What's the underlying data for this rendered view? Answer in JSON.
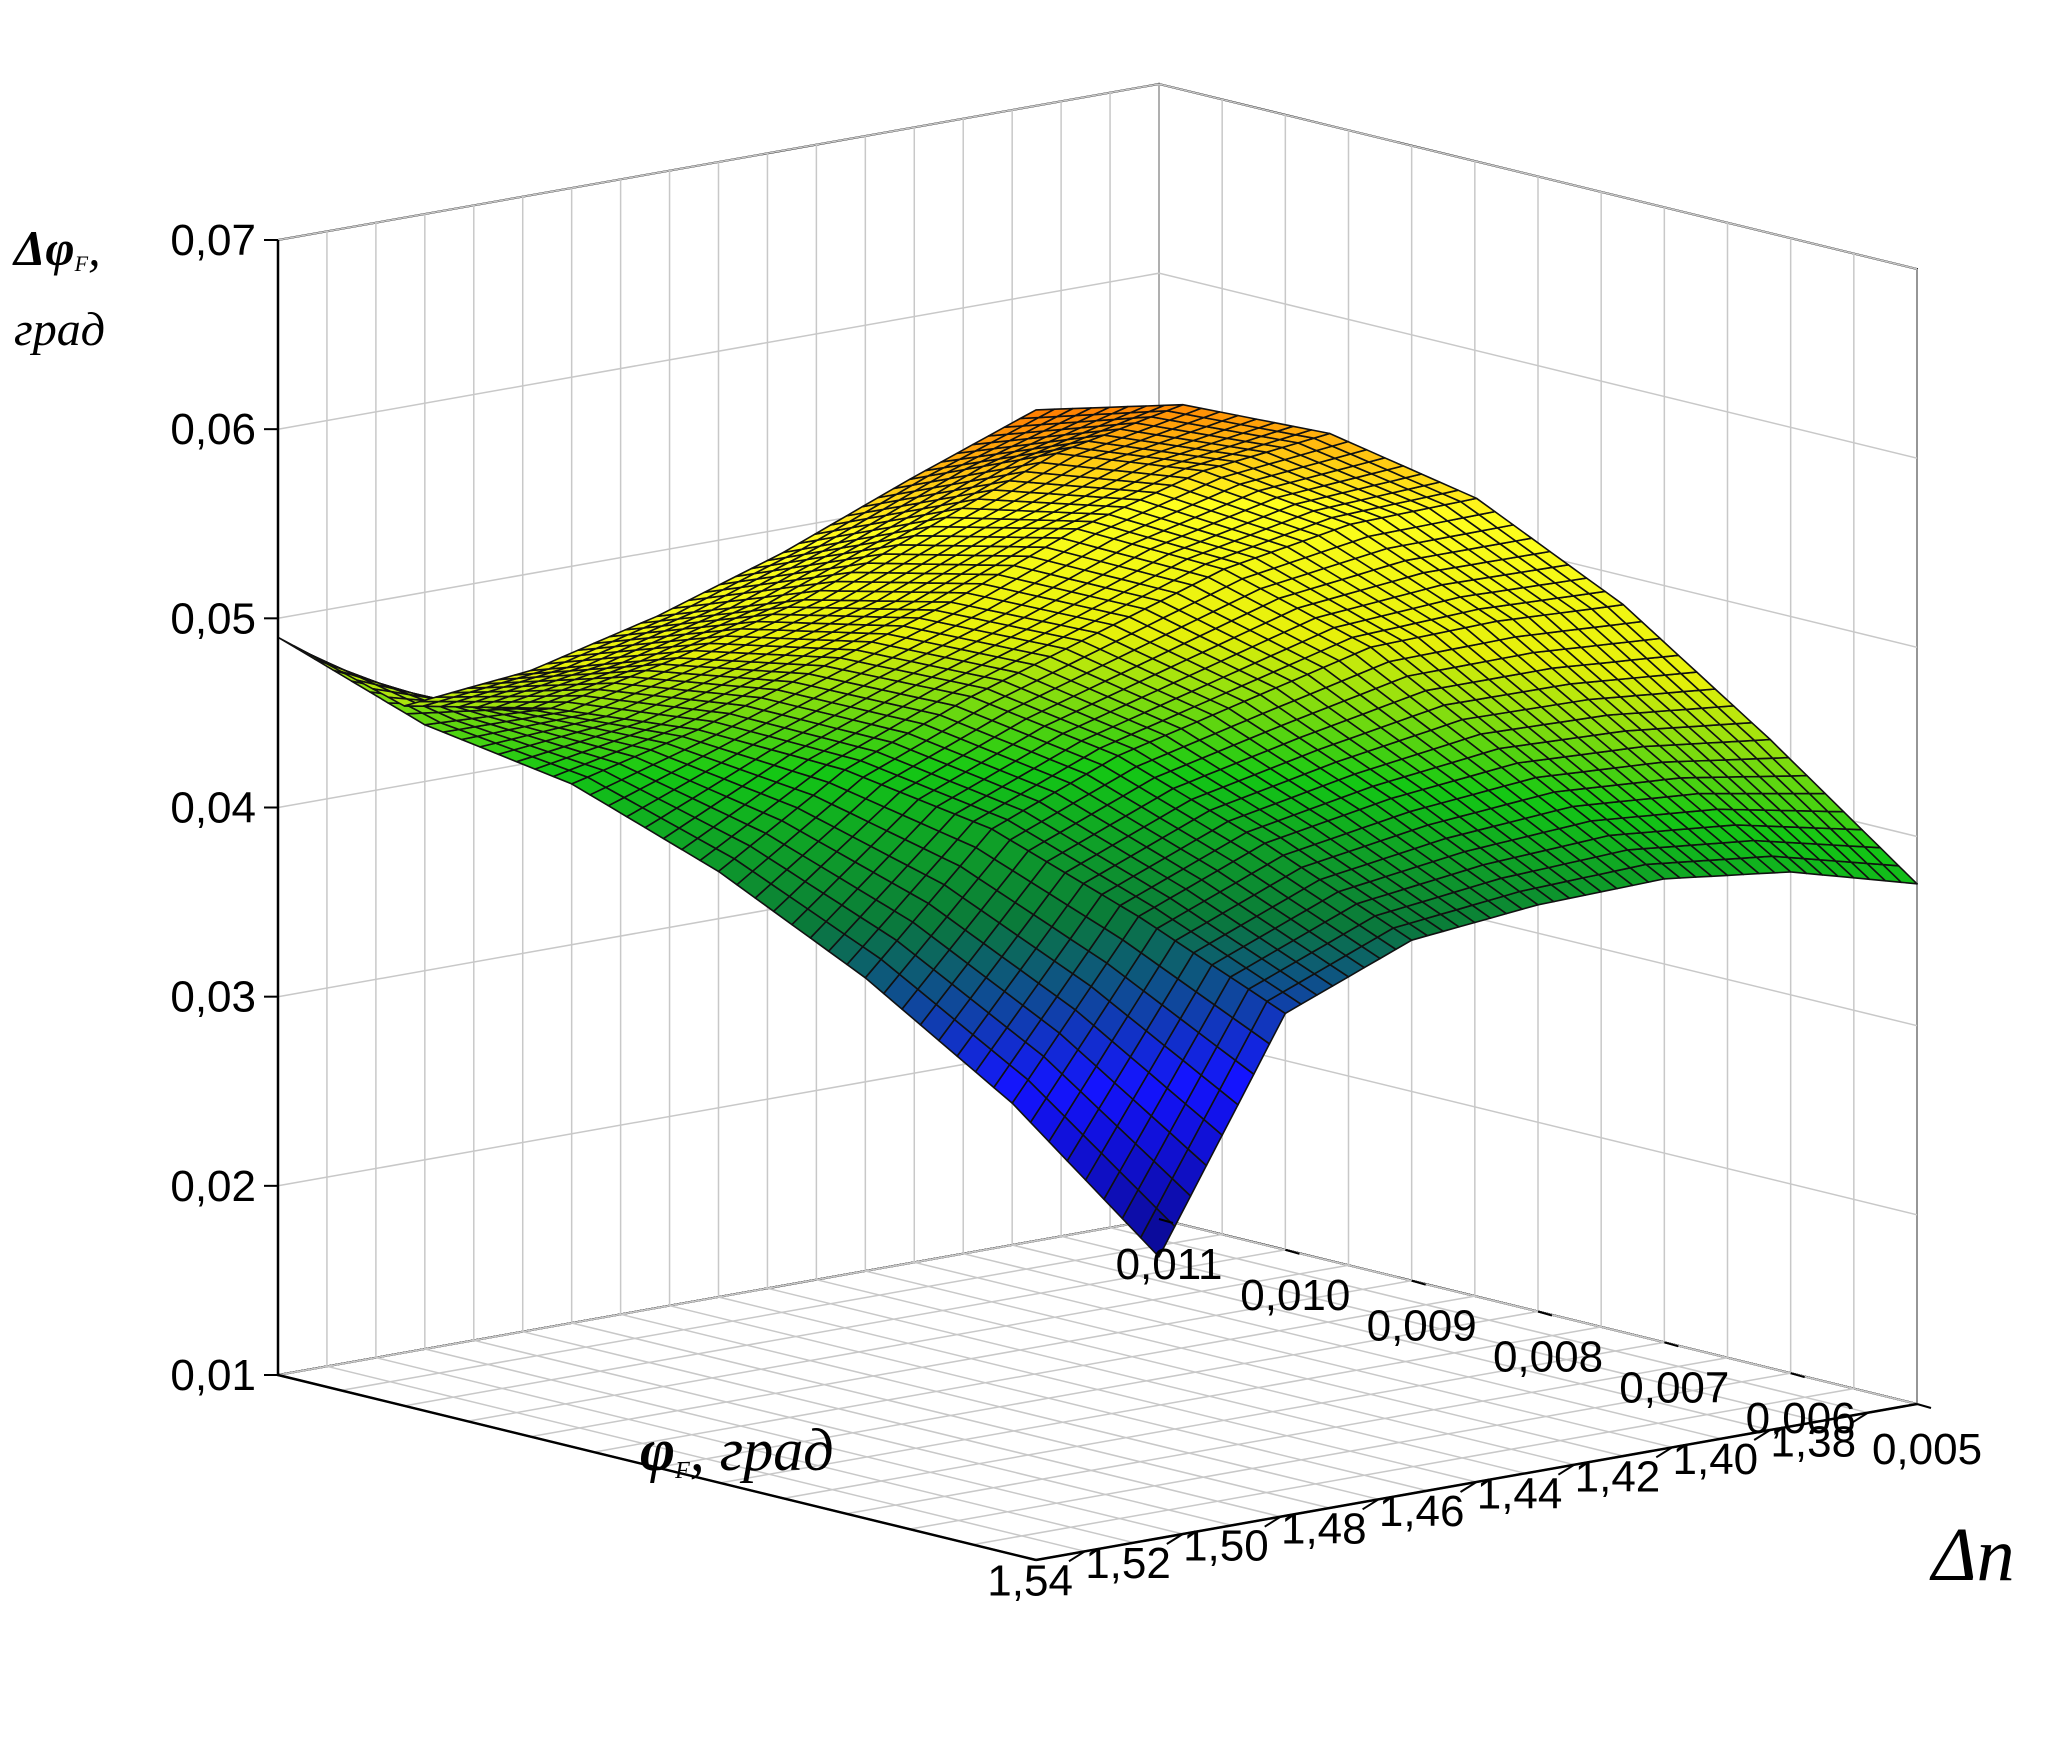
{
  "chart_data": {
    "type": "surface3d",
    "colormap": {
      "name": "blue-green-yellow-orange",
      "stops": [
        "#0a0a8c",
        "#1414ff",
        "#0a7a3a",
        "#14c814",
        "#e6f00a",
        "#ffff1e",
        "#ff7800"
      ]
    },
    "grid": true,
    "axes": {
      "x": {
        "label_sym": "φ",
        "label_sub": "F",
        "label_unit": ", град",
        "range": [
          1.37,
          1.55
        ],
        "ticks": [
          "1,38",
          "1,40",
          "1,42",
          "1,44",
          "1,46",
          "1,48",
          "1,50",
          "1,52",
          "1,54"
        ],
        "tick_values": [
          1.38,
          1.4,
          1.42,
          1.44,
          1.46,
          1.48,
          1.5,
          1.52,
          1.54
        ]
      },
      "y": {
        "label": "Δn",
        "range": [
          0.005,
          0.011
        ],
        "ticks": [
          "0,005",
          "0,006",
          "0,007",
          "0,008",
          "0,009",
          "0,010",
          "0,011"
        ],
        "tick_values": [
          0.005,
          0.006,
          0.007,
          0.008,
          0.009,
          0.01,
          0.011
        ]
      },
      "z": {
        "label_top_sym": "Δφ",
        "label_top_sub": "F",
        "label_top_suffix": ",",
        "label_bottom": "град",
        "range": [
          0.01,
          0.07
        ],
        "ticks": [
          "0,01",
          "0,02",
          "0,03",
          "0,04",
          "0,05",
          "0,06",
          "0,07"
        ],
        "tick_values": [
          0.01,
          0.02,
          0.03,
          0.04,
          0.05,
          0.06,
          0.07
        ]
      }
    },
    "surface": {
      "x": [
        1.37,
        1.4,
        1.43,
        1.46,
        1.49,
        1.52,
        1.55
      ],
      "y": [
        0.005,
        0.006,
        0.007,
        0.008,
        0.009,
        0.01,
        0.011
      ],
      "z": [
        [
          0.0375,
          0.0465,
          0.055,
          0.062,
          0.0668,
          0.0697,
          0.0708
        ],
        [
          0.0365,
          0.0445,
          0.0525,
          0.059,
          0.0632,
          0.0655,
          0.0655
        ],
        [
          0.0345,
          0.042,
          0.0495,
          0.055,
          0.0585,
          0.06,
          0.06
        ],
        [
          0.0315,
          0.0385,
          0.045,
          0.05,
          0.053,
          0.0545,
          0.055
        ],
        [
          0.028,
          0.0345,
          0.0405,
          0.045,
          0.048,
          0.0498,
          0.0505
        ],
        [
          0.0225,
          0.029,
          0.035,
          0.0395,
          0.043,
          0.0455,
          0.047
        ],
        [
          0.008,
          0.0175,
          0.0255,
          0.0325,
          0.0385,
          0.043,
          0.049
        ]
      ]
    }
  }
}
